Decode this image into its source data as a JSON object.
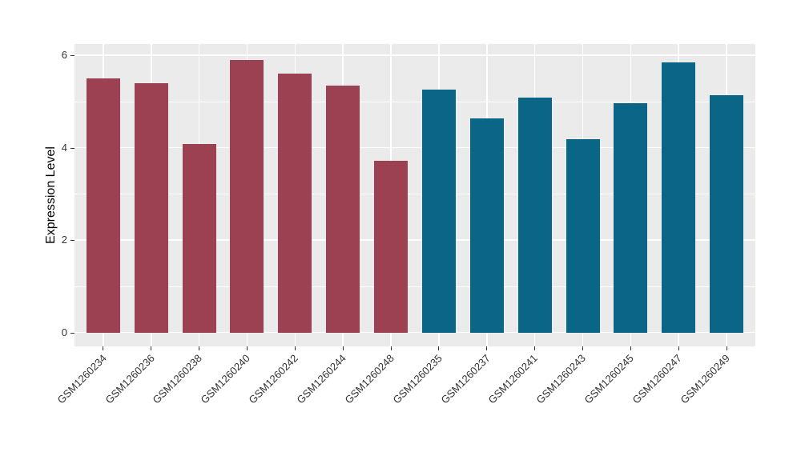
{
  "chart_data": {
    "type": "bar",
    "title": "",
    "xlabel": "",
    "ylabel": "Expression Level",
    "categories": [
      "GSM1260234",
      "GSM1260236",
      "GSM1260238",
      "GSM1260240",
      "GSM1260242",
      "GSM1260244",
      "GSM1260248",
      "GSM1260235",
      "GSM1260237",
      "GSM1260241",
      "GSM1260243",
      "GSM1260245",
      "GSM1260247",
      "GSM1260249"
    ],
    "values": [
      5.5,
      5.4,
      4.08,
      5.9,
      5.61,
      5.35,
      3.72,
      5.25,
      4.64,
      5.09,
      4.19,
      4.97,
      5.85,
      5.13
    ],
    "bar_colors": [
      "#9C4151",
      "#9C4151",
      "#9C4151",
      "#9C4151",
      "#9C4151",
      "#9C4151",
      "#9C4151",
      "#0B6587",
      "#0B6587",
      "#0B6587",
      "#0B6587",
      "#0B6587",
      "#0B6587",
      "#0B6587"
    ],
    "group_colors": {
      "left_group": "#9C4151",
      "right_group": "#0B6587"
    },
    "yticks": [
      0,
      2,
      4,
      6
    ],
    "yticks_minor": [
      1,
      3,
      5
    ],
    "ylim": [
      0,
      6.2
    ],
    "grid": true,
    "legend_visible": false,
    "plot_background": "#EBEBEB",
    "gridline_color": "#FFFFFF",
    "axis_text_color": "#333333"
  }
}
